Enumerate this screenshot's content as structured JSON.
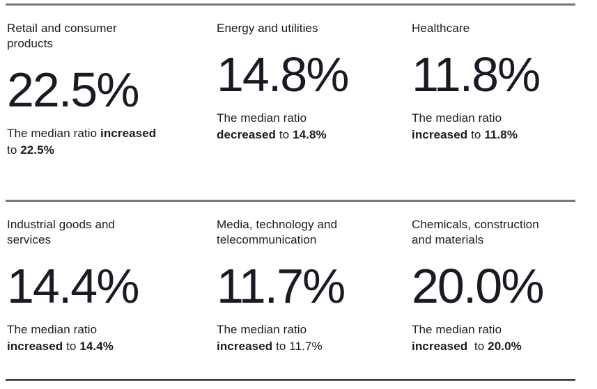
{
  "styles": {
    "divider_light_color": "#76767a",
    "divider_dark_color": "#1a1a24",
    "text_color": "#1a1a24"
  },
  "cards": [
    {
      "title_lines": [
        "Retail and consumer",
        "products"
      ],
      "value": "22.5%",
      "description_lines": [
        [
          {
            "t": "The median ratio ",
            "b": false
          },
          {
            "t": "increased",
            "b": true
          }
        ],
        [
          {
            "t": "to ",
            "b": false
          },
          {
            "t": "22.5%",
            "b": true
          }
        ]
      ]
    },
    {
      "title_lines": [
        "Energy and utilities"
      ],
      "value": "14.8%",
      "description_lines": [
        [
          {
            "t": "The median ratio",
            "b": false
          }
        ],
        [
          {
            "t": "decreased",
            "b": true
          },
          {
            "t": " to ",
            "b": false
          },
          {
            "t": "14.8%",
            "b": true
          }
        ]
      ]
    },
    {
      "title_lines": [
        "Healthcare"
      ],
      "value": "11.8%",
      "description_lines": [
        [
          {
            "t": "The median ratio",
            "b": false
          }
        ],
        [
          {
            "t": "increased",
            "b": true
          },
          {
            "t": " to ",
            "b": false
          },
          {
            "t": "11.8%",
            "b": true
          }
        ]
      ]
    },
    {
      "title_lines": [
        "Industrial goods and",
        "services"
      ],
      "value": "14.4%",
      "description_lines": [
        [
          {
            "t": "The median ratio",
            "b": false
          }
        ],
        [
          {
            "t": "increased",
            "b": true
          },
          {
            "t": " to ",
            "b": false
          },
          {
            "t": "14.4%",
            "b": true
          }
        ]
      ]
    },
    {
      "title_lines": [
        "Media, technology and",
        "telecommunication"
      ],
      "value": "11.7%",
      "description_lines": [
        [
          {
            "t": "The median ratio",
            "b": false
          }
        ],
        [
          {
            "t": "increased",
            "b": true
          },
          {
            "t": " to 11.7%",
            "b": false
          }
        ]
      ]
    },
    {
      "title_lines": [
        "Chemicals, construction",
        "and materials"
      ],
      "value": "20.0%",
      "description_lines": [
        [
          {
            "t": "The median ratio",
            "b": false
          }
        ],
        [
          {
            "t": "increased",
            "b": true
          },
          {
            "t": "  to ",
            "b": false
          },
          {
            "t": "20.0%",
            "b": true
          }
        ]
      ]
    }
  ],
  "chart_data": {
    "type": "table",
    "categories": [
      "Retail and consumer products",
      "Energy and utilities",
      "Healthcare",
      "Industrial goods and services",
      "Media, technology and telecommunication",
      "Chemicals, construction and materials"
    ],
    "values": [
      22.5,
      14.8,
      11.8,
      14.4,
      11.7,
      20.0
    ],
    "unit": "%",
    "change_direction": [
      "increased",
      "decreased",
      "increased",
      "increased",
      "increased",
      "increased"
    ],
    "layout_hint": "3 columns x 2 rows of KPI tiles, horizontal rules above each row and at bottom"
  }
}
